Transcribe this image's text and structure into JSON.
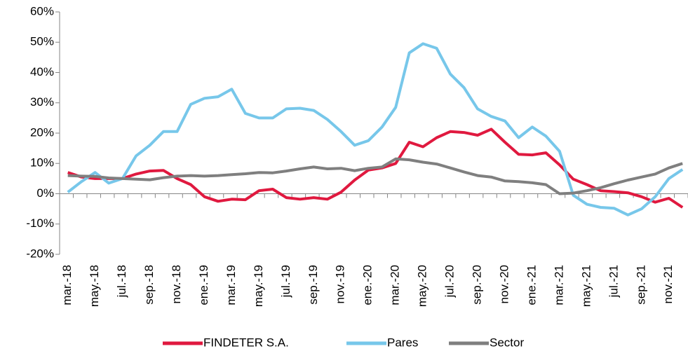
{
  "chart_data": {
    "type": "line",
    "categories": [
      "mar.-18",
      null,
      "may.-18",
      null,
      "jul.-18",
      null,
      "sep.-18",
      null,
      "nov.-18",
      null,
      "ene.-19",
      null,
      "mar.-19",
      null,
      "may.-19",
      null,
      "jul.-19",
      null,
      "sep.-19",
      null,
      "nov.-19",
      null,
      "ene.-20",
      null,
      "mar.-20",
      null,
      "may.-20",
      null,
      "jul.-20",
      null,
      "sep.-20",
      null,
      "nov.-20",
      null,
      "ene.-21",
      null,
      "mar.-21",
      null,
      "may.-21",
      null,
      "jul.-21",
      null,
      "sep.-21",
      null,
      "nov.-21",
      null
    ],
    "series": [
      {
        "name": "FINDETER S.A.",
        "color": "#e0193f",
        "values": [
          7,
          5.5,
          5,
          5,
          5,
          6.5,
          7.5,
          7.7,
          5,
          3,
          -1,
          -2.5,
          -1.8,
          -2,
          1,
          1.5,
          -1.3,
          -1.8,
          -1.3,
          -1.8,
          0.5,
          4.5,
          7.8,
          8.5,
          10,
          17,
          15.5,
          18.5,
          20.5,
          20.2,
          19.3,
          21.3,
          17,
          13,
          12.8,
          13.5,
          9.5,
          4.8,
          3,
          1,
          0.7,
          0.3,
          -1,
          -2.8,
          -1.5,
          -4.5
        ]
      },
      {
        "name": "Pares",
        "color": "#77c7ea",
        "values": [
          0.5,
          4,
          7,
          3.5,
          5,
          12.5,
          16,
          20.5,
          20.5,
          29.5,
          31.5,
          32,
          34.5,
          26.5,
          25,
          25,
          28,
          28.2,
          27.5,
          24.5,
          20.5,
          16,
          17.5,
          22,
          28.5,
          46.5,
          49.5,
          48,
          39.5,
          35,
          28,
          25.5,
          24,
          18.5,
          22,
          19,
          14,
          -0.5,
          -3.5,
          -4.5,
          -4.8,
          -7,
          -5,
          -1,
          5,
          8
        ]
      },
      {
        "name": "Sector",
        "color": "#7f7f7f",
        "values": [
          6,
          5.8,
          5.7,
          5.2,
          5,
          4.8,
          4.6,
          5.3,
          5.8,
          6,
          5.8,
          6,
          6.3,
          6.6,
          7,
          6.9,
          7.5,
          8.2,
          8.8,
          8.2,
          8.4,
          7.6,
          8.4,
          8.8,
          11.5,
          11.2,
          10.4,
          9.8,
          8.5,
          7.2,
          6,
          5.5,
          4.2,
          4,
          3.6,
          3,
          0,
          0.2,
          1,
          2,
          3.3,
          4.5,
          5.5,
          6.5,
          8.5,
          10
        ]
      }
    ],
    "ylim": [
      -20,
      60
    ],
    "yticks": [
      {
        "value": -20,
        "label": "-20%"
      },
      {
        "value": -10,
        "label": "-10%"
      },
      {
        "value": 0,
        "label": "0%"
      },
      {
        "value": 10,
        "label": "10%"
      },
      {
        "value": 20,
        "label": "20%"
      },
      {
        "value": 30,
        "label": "30%"
      },
      {
        "value": 40,
        "label": "40%"
      },
      {
        "value": 50,
        "label": "50%"
      },
      {
        "value": 60,
        "label": "60%"
      }
    ],
    "grid": false,
    "legend": "bottom"
  }
}
